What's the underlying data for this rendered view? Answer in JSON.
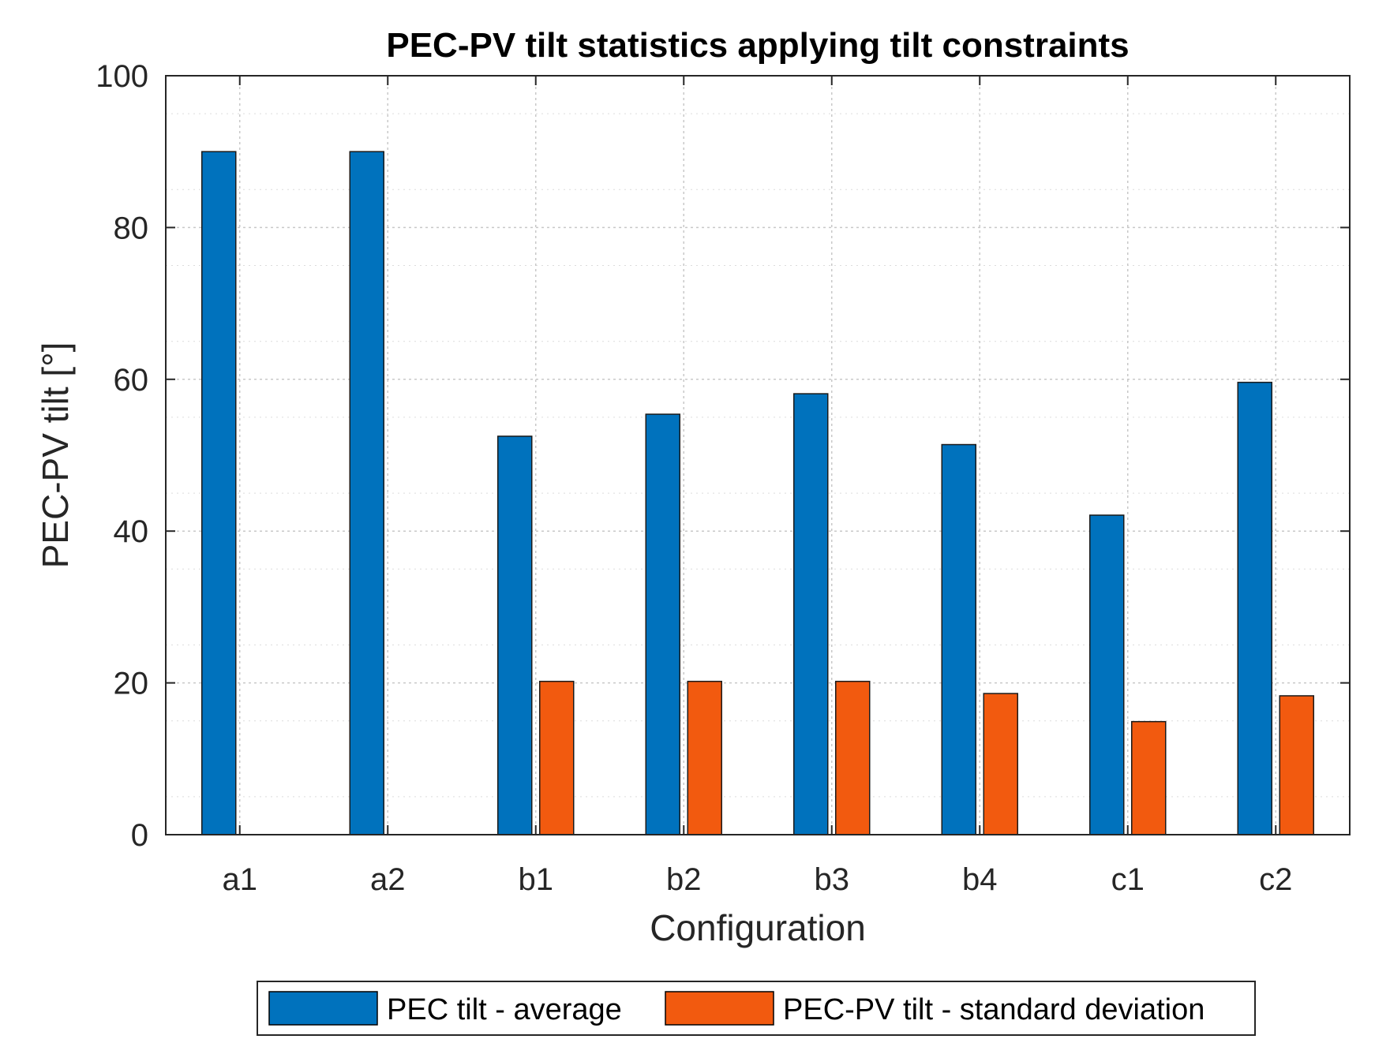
{
  "chart_data": {
    "type": "bar",
    "title": "PEC-PV tilt statistics applying tilt constraints",
    "xlabel": "Configuration",
    "ylabel": "PEC-PV tilt [°]",
    "categories": [
      "a1",
      "a2",
      "b1",
      "b2",
      "b3",
      "b4",
      "c1",
      "c2"
    ],
    "series": [
      {
        "name": "PEC tilt - average",
        "color": "#0072BD",
        "values": [
          90,
          90,
          52.5,
          55.4,
          58.1,
          51.4,
          42.1,
          59.6
        ]
      },
      {
        "name": "PEC-PV tilt - standard deviation",
        "color": "#F25A0F",
        "values": [
          0,
          0,
          20.2,
          20.2,
          20.2,
          18.6,
          14.9,
          18.3
        ]
      }
    ],
    "ylim": [
      0,
      100
    ],
    "yticks": [
      0,
      20,
      40,
      60,
      80,
      100
    ],
    "ytick_labels": [
      "0",
      "20",
      "40",
      "60",
      "80",
      "100"
    ],
    "grid": true,
    "minor_grid": true,
    "legend_position": "bottom-outside"
  }
}
